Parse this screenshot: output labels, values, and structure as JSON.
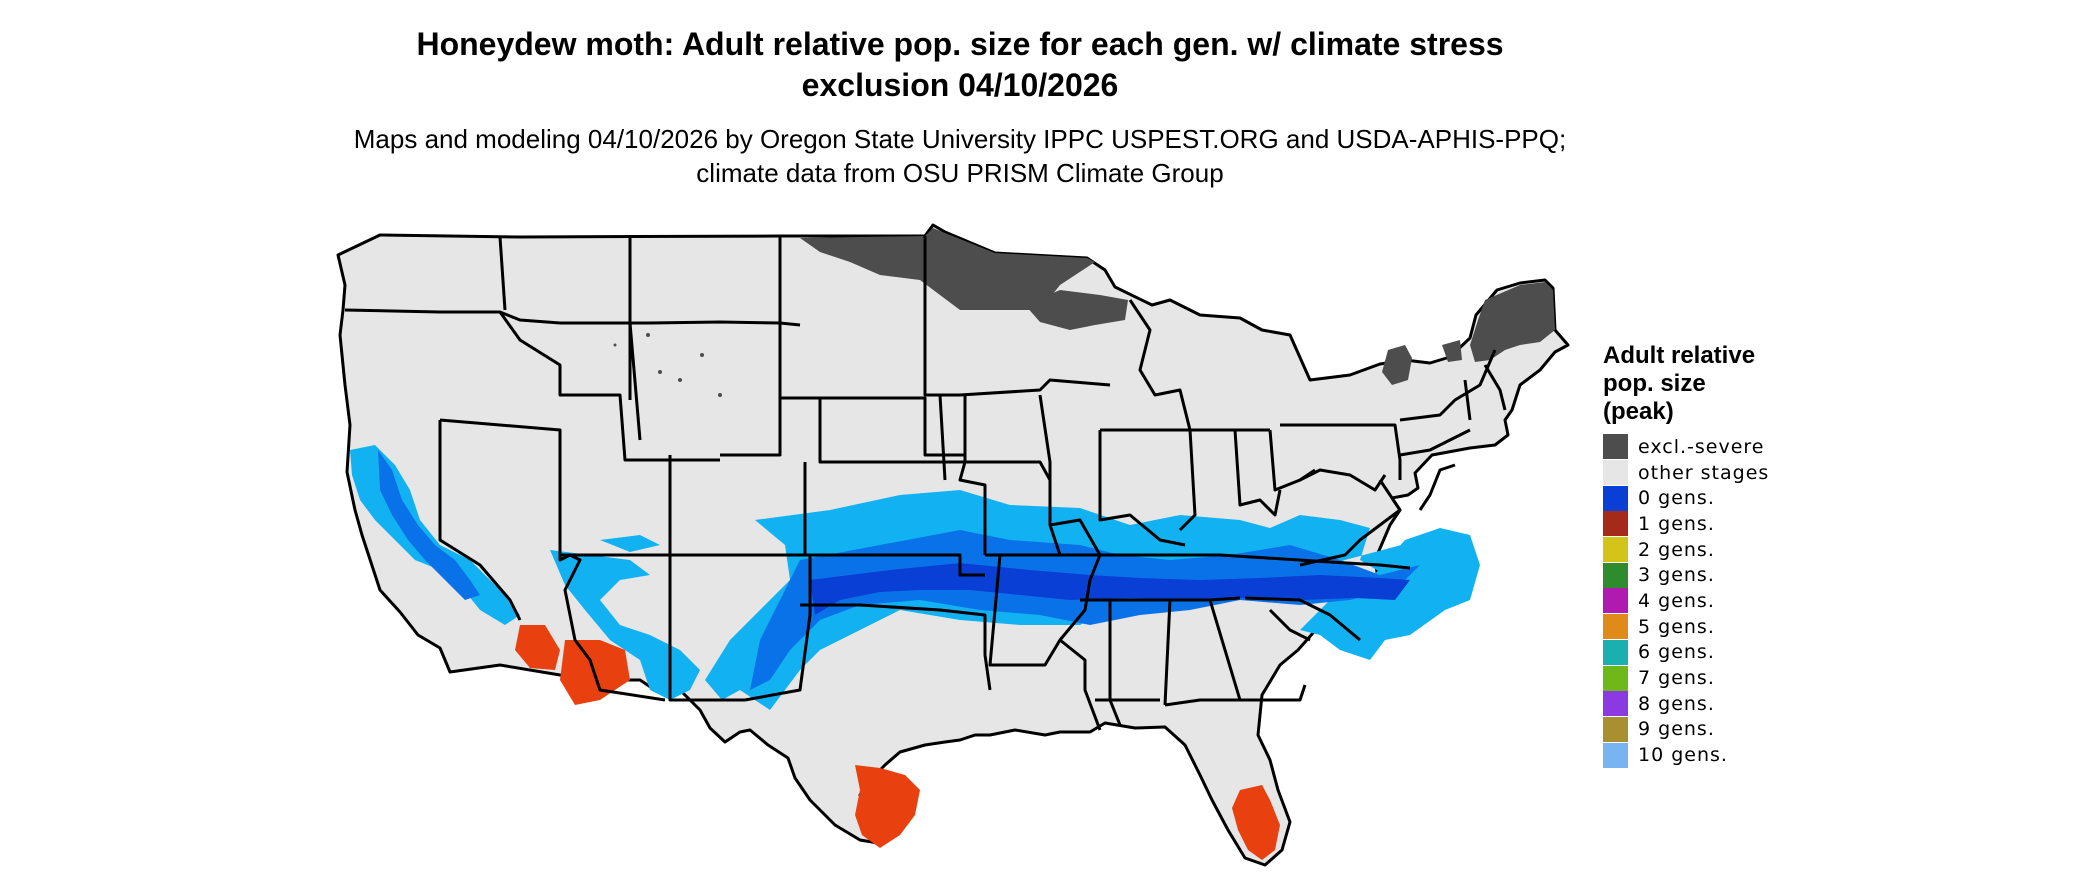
{
  "title": "Honeydew moth: Adult relative pop. size for each gen. w/ climate stress exclusion 04/10/2026",
  "subtitle": "Maps and modeling 04/10/2026 by Oregon State University IPPC USPEST.ORG and USDA-APHIS-PPQ; climate data from OSU PRISM Climate Group",
  "map": {
    "region": "Contiguous United States",
    "colors": {
      "land": "#e6e6e6",
      "excluded": "#4d4d4d",
      "light_blue": "#12b2f2",
      "mid_blue": "#0a72e8",
      "dark_blue": "#0a3fd6",
      "red": "#e8400e",
      "border": "#000000"
    }
  },
  "legend": {
    "title": "Adult relative\npop. size\n(peak)",
    "items": [
      {
        "label": "excl.-severe",
        "color": "#4d4d4d"
      },
      {
        "label": "other stages",
        "color": "#e6e6e6"
      },
      {
        "label": "0 gens.",
        "color": "#0a3fd6"
      },
      {
        "label": "1 gens.",
        "color": "#a52a1a"
      },
      {
        "label": "2 gens.",
        "color": "#d4c41a"
      },
      {
        "label": "3 gens.",
        "color": "#2e8b2e"
      },
      {
        "label": "4 gens.",
        "color": "#b01ab0"
      },
      {
        "label": "5 gens.",
        "color": "#e08a1a"
      },
      {
        "label": "6 gens.",
        "color": "#1ab0b0"
      },
      {
        "label": "7 gens.",
        "color": "#6fb81a"
      },
      {
        "label": "8 gens.",
        "color": "#8a3ae0"
      },
      {
        "label": "9 gens.",
        "color": "#a89030"
      },
      {
        "label": "10 gens.",
        "color": "#78b4f0"
      }
    ]
  }
}
